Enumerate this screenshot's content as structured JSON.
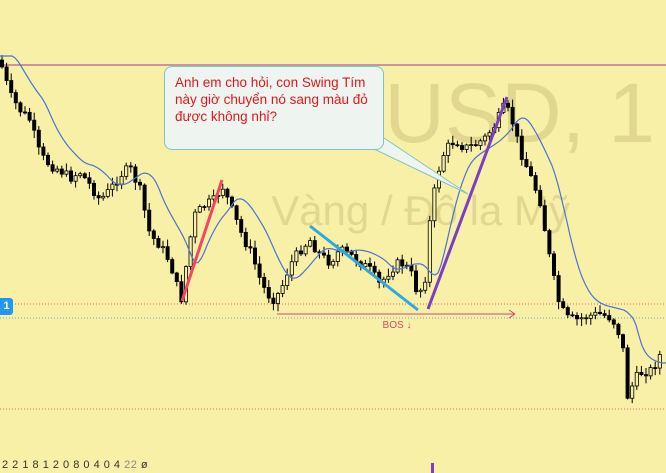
{
  "chart_data": {
    "type": "candlestick",
    "symbol_watermark": "XAUUSD, 1",
    "description_watermark": "Vàng / Đô la Mỹ",
    "callout_text": "Anh em cho hỏi, con Swing Tím này giờ chuyển nó sang màu đỏ được không nhỉ?",
    "bos_label": "BOS ↓",
    "price_tag": "1",
    "bottom_text": "2 2 1 8 1 2 0 8 0 4 0 4",
    "bottom_text_extra": "22",
    "bottom_text_symbol": "ø",
    "colors": {
      "background": "#f9f0a8",
      "candle": "#000000",
      "moving_average": "#4a73d6",
      "swing_red": "#ef4860",
      "swing_blue": "#31a8e0",
      "swing_purple": "#7a3fc4",
      "bos_line": "#cc4a6e",
      "top_line": "#9b3a9b",
      "dotted_red": "#e06060",
      "dotted_blue": "#6fa0c8",
      "callout_text": "#e0171d",
      "callout_border": "#7ec5c2"
    }
  }
}
